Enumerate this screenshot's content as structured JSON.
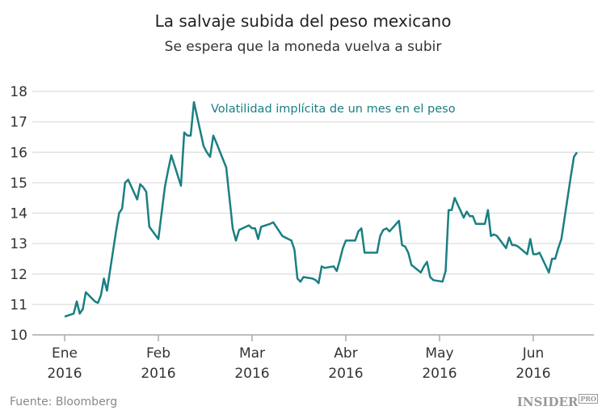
{
  "chart_data": {
    "type": "line",
    "title": "La salvaje subida del peso mexicano",
    "subtitle": "Se espera que la moneda vuelva a subir",
    "annotation": "Volatilidad implícita de un mes en el peso",
    "ylim": [
      10,
      18
    ],
    "yticks": [
      "10",
      "11",
      "12",
      "13",
      "14",
      "15",
      "16",
      "17",
      "18"
    ],
    "xticks": [
      {
        "month": "Ene",
        "year": "2016"
      },
      {
        "month": "Feb",
        "year": "2016"
      },
      {
        "month": "Mar",
        "year": "2016"
      },
      {
        "month": "Abr",
        "year": "2016"
      },
      {
        "month": "May",
        "year": "2016"
      },
      {
        "month": "Jun",
        "year": "2016"
      }
    ],
    "grid": true,
    "line_color": "#1a7f82",
    "dates": [
      "2016-01-01",
      "2016-01-04",
      "2016-01-05",
      "2016-01-06",
      "2016-01-07",
      "2016-01-08",
      "2016-01-11",
      "2016-01-12",
      "2016-01-13",
      "2016-01-14",
      "2016-01-15",
      "2016-01-18",
      "2016-01-19",
      "2016-01-20",
      "2016-01-21",
      "2016-01-22",
      "2016-01-25",
      "2016-01-26",
      "2016-01-27",
      "2016-01-28",
      "2016-01-29",
      "2016-02-01",
      "2016-02-02",
      "2016-02-03",
      "2016-02-04",
      "2016-02-05",
      "2016-02-08",
      "2016-02-09",
      "2016-02-10",
      "2016-02-11",
      "2016-02-12",
      "2016-02-15",
      "2016-02-16",
      "2016-02-17",
      "2016-02-18",
      "2016-02-19",
      "2016-02-22",
      "2016-02-23",
      "2016-02-24",
      "2016-02-25",
      "2016-02-26",
      "2016-02-29",
      "2016-03-01",
      "2016-03-02",
      "2016-03-03",
      "2016-03-04",
      "2016-03-07",
      "2016-03-08",
      "2016-03-09",
      "2016-03-10",
      "2016-03-11",
      "2016-03-14",
      "2016-03-15",
      "2016-03-16",
      "2016-03-17",
      "2016-03-18",
      "2016-03-21",
      "2016-03-22",
      "2016-03-23",
      "2016-03-24",
      "2016-03-25",
      "2016-03-28",
      "2016-03-29",
      "2016-03-30",
      "2016-03-31",
      "2016-04-01",
      "2016-04-04",
      "2016-04-05",
      "2016-04-06",
      "2016-04-07",
      "2016-04-08",
      "2016-04-11",
      "2016-04-12",
      "2016-04-13",
      "2016-04-14",
      "2016-04-15",
      "2016-04-18",
      "2016-04-19",
      "2016-04-20",
      "2016-04-21",
      "2016-04-22",
      "2016-04-25",
      "2016-04-26",
      "2016-04-27",
      "2016-04-28",
      "2016-04-29",
      "2016-05-02",
      "2016-05-03",
      "2016-05-04",
      "2016-05-05",
      "2016-05-06",
      "2016-05-09",
      "2016-05-10",
      "2016-05-11",
      "2016-05-12",
      "2016-05-13",
      "2016-05-16",
      "2016-05-17",
      "2016-05-18",
      "2016-05-19",
      "2016-05-20",
      "2016-05-23",
      "2016-05-24",
      "2016-05-25",
      "2016-05-26",
      "2016-05-27",
      "2016-05-30",
      "2016-05-31",
      "2016-06-01",
      "2016-06-02",
      "2016-06-03",
      "2016-06-06",
      "2016-06-07",
      "2016-06-08",
      "2016-06-09",
      "2016-06-10",
      "2016-06-13",
      "2016-06-14",
      "2016-06-15"
    ],
    "values": [
      10.6,
      10.7,
      11.1,
      10.7,
      10.85,
      11.4,
      11.1,
      11.05,
      11.3,
      11.85,
      11.45,
      13.4,
      14.0,
      14.15,
      15.0,
      15.1,
      14.45,
      14.95,
      14.85,
      14.7,
      13.55,
      13.15,
      14.0,
      14.85,
      15.4,
      15.9,
      14.9,
      16.65,
      16.55,
      16.55,
      17.65,
      16.2,
      16.0,
      15.85,
      16.55,
      16.3,
      15.5,
      14.5,
      13.5,
      13.1,
      13.45,
      13.6,
      13.5,
      13.5,
      13.15,
      13.55,
      13.65,
      13.7,
      13.55,
      13.4,
      13.25,
      13.1,
      12.8,
      11.85,
      11.75,
      11.9,
      11.85,
      11.8,
      11.7,
      12.25,
      12.2,
      12.25,
      12.1,
      12.45,
      12.85,
      13.1,
      13.1,
      13.4,
      13.5,
      12.7,
      12.7,
      12.7,
      13.25,
      13.45,
      13.5,
      13.4,
      13.75,
      12.95,
      12.9,
      12.7,
      12.3,
      12.05,
      12.25,
      12.4,
      11.9,
      11.8,
      11.75,
      12.1,
      14.1,
      14.1,
      14.5,
      13.85,
      14.05,
      13.9,
      13.9,
      13.65,
      13.65,
      14.1,
      13.25,
      13.3,
      13.25,
      12.85,
      13.2,
      12.95,
      12.95,
      12.9,
      12.65,
      13.15,
      12.65,
      12.65,
      12.7,
      12.05,
      12.5,
      12.5,
      12.85,
      13.15,
      15.2,
      15.85,
      16.0
    ]
  },
  "footer": {
    "source": "Fuente: Bloomberg",
    "logo": "INSIDER",
    "logo_suffix": "PRO"
  }
}
